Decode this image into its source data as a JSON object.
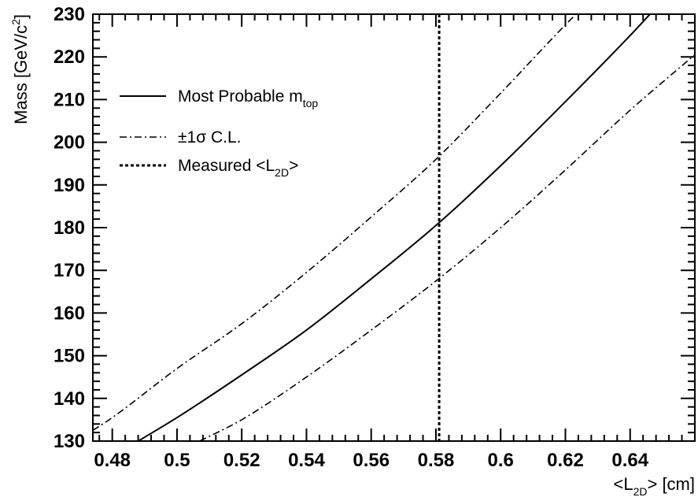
{
  "chart_data": {
    "type": "line",
    "xlabel": {
      "main": "<L",
      "sub": "2D",
      "tail": "> [cm]"
    },
    "ylabel": {
      "main": "Mass [GeV/c",
      "sup": "2",
      "tail": "]"
    },
    "xlim": [
      0.474,
      0.66
    ],
    "ylim": [
      130,
      230
    ],
    "xticks": [
      0.48,
      0.5,
      0.52,
      0.54,
      0.56,
      0.58,
      0.6,
      0.62,
      0.64
    ],
    "xtick_labels": [
      "0.48",
      "0.5",
      "0.52",
      "0.54",
      "0.56",
      "0.58",
      "0.6",
      "0.62",
      "0.64"
    ],
    "yticks": [
      130,
      140,
      150,
      160,
      170,
      180,
      190,
      200,
      210,
      220,
      230
    ],
    "ytick_labels": [
      "130",
      "140",
      "150",
      "160",
      "170",
      "180",
      "190",
      "200",
      "210",
      "220",
      "230"
    ],
    "grid": false,
    "legend_position": "top-left",
    "series": [
      {
        "name": "Most Probable m",
        "name_sub": "top",
        "style": "solid",
        "x": [
          0.488,
          0.5,
          0.52,
          0.54,
          0.56,
          0.58,
          0.6,
          0.62,
          0.64,
          0.651
        ],
        "y": [
          130,
          135.5,
          145.5,
          156,
          168,
          180.5,
          194.5,
          209.5,
          225,
          234
        ]
      },
      {
        "name": "±1σ C.L.",
        "style": "dashdot",
        "x": [
          0.474,
          0.48,
          0.5,
          0.52,
          0.54,
          0.56,
          0.58,
          0.6,
          0.62,
          0.626
        ],
        "y": [
          132.5,
          135.5,
          147,
          157.5,
          169.5,
          182.5,
          196,
          211.5,
          227.5,
          232
        ]
      },
      {
        "name": "",
        "style": "dashdot",
        "x": [
          0.507,
          0.52,
          0.54,
          0.56,
          0.58,
          0.6,
          0.62,
          0.64,
          0.66
        ],
        "y": [
          130,
          135,
          145,
          156,
          167.5,
          180,
          193.5,
          207.5,
          220.5
        ]
      }
    ],
    "marker_line": {
      "name": "Measured <L",
      "name_sub": "2D",
      "name_tail": ">",
      "style": "dotted",
      "x": 0.581
    }
  }
}
